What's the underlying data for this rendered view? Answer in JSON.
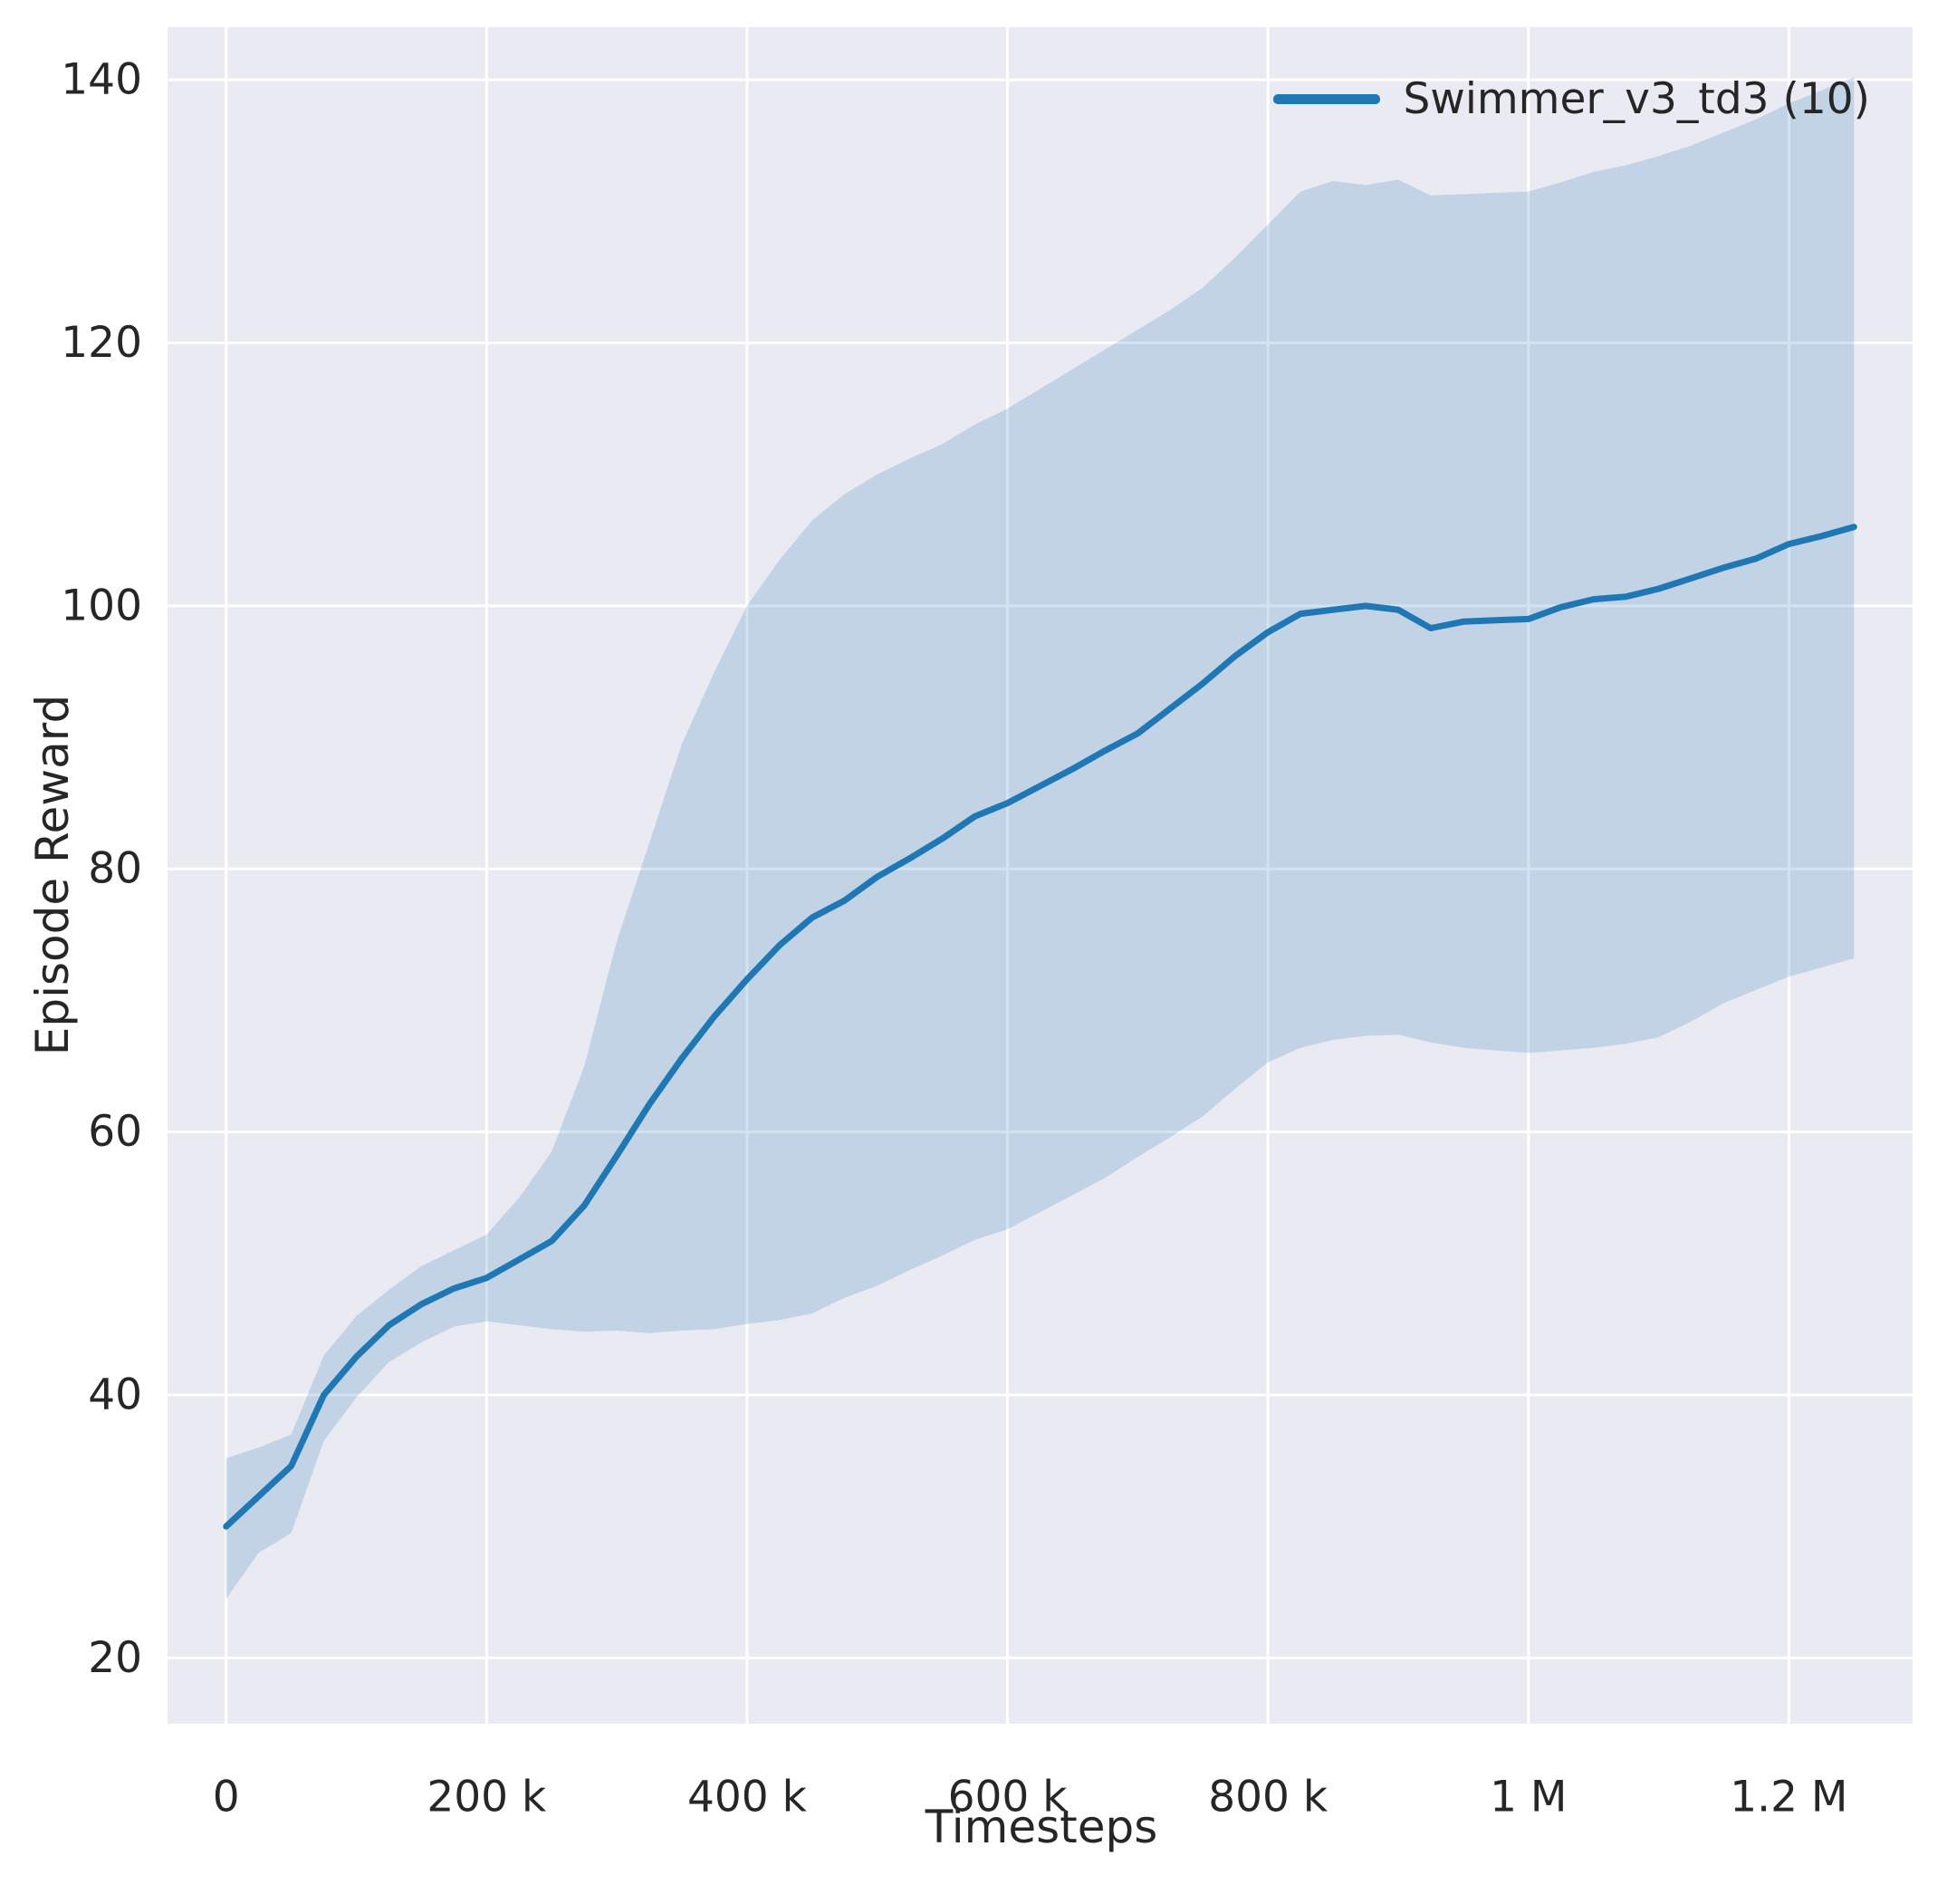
{
  "figure": {
    "background": "#ffffff",
    "plot_background": "#eaeaf2",
    "grid_color": "#ffffff",
    "tick_color": "#262626"
  },
  "chart_data": {
    "type": "line",
    "title": "",
    "xlabel": "Timesteps",
    "ylabel": "Episode Reward",
    "xlim": [
      -45000,
      1295000
    ],
    "ylim": [
      15,
      144
    ],
    "grid": true,
    "legend_position": "upper right",
    "xticks": {
      "values": [
        0,
        200000,
        400000,
        600000,
        800000,
        1000000,
        1200000
      ],
      "labels": [
        "0",
        "200 k",
        "400 k",
        "600 k",
        "800 k",
        "1 M",
        "1.2 M"
      ]
    },
    "yticks": {
      "values": [
        20,
        40,
        60,
        80,
        100,
        120,
        140
      ],
      "labels": [
        "20",
        "40",
        "60",
        "80",
        "100",
        "120",
        "140"
      ]
    },
    "series": [
      {
        "name": "Swimmer_v3_td3 (10)",
        "color": "#1f77b4",
        "band_color": "#1f77b4",
        "band_opacity": 0.2,
        "x": [
          0,
          25000,
          50000,
          75000,
          100000,
          125000,
          150000,
          175000,
          200000,
          225000,
          250000,
          275000,
          300000,
          325000,
          350000,
          375000,
          400000,
          425000,
          450000,
          475000,
          500000,
          525000,
          550000,
          575000,
          600000,
          625000,
          650000,
          675000,
          700000,
          725000,
          750000,
          775000,
          800000,
          825000,
          850000,
          875000,
          900000,
          925000,
          950000,
          975000,
          1000000,
          1025000,
          1050000,
          1075000,
          1100000,
          1125000,
          1150000,
          1175000,
          1200000,
          1225000,
          1250000
        ],
        "mean": [
          30.0,
          32.3,
          34.6,
          40.0,
          42.9,
          45.3,
          46.9,
          48.1,
          48.9,
          50.3,
          51.7,
          54.4,
          58.2,
          62.1,
          65.6,
          68.8,
          71.6,
          74.2,
          76.3,
          77.6,
          79.4,
          80.8,
          82.3,
          84.0,
          85.0,
          86.3,
          87.6,
          89.0,
          90.3,
          92.2,
          94.1,
          96.2,
          98.0,
          99.4,
          99.7,
          100.0,
          99.7,
          98.3,
          98.8,
          98.9,
          99.0,
          99.9,
          100.5,
          100.7,
          101.3,
          102.1,
          102.9,
          103.6,
          104.7,
          105.3,
          106.0
        ],
        "lower": [
          24.5,
          28.0,
          29.5,
          36.5,
          39.8,
          42.5,
          44.0,
          45.2,
          45.6,
          45.3,
          45.0,
          44.8,
          44.9,
          44.7,
          44.9,
          45.0,
          45.4,
          45.7,
          46.2,
          47.4,
          48.3,
          49.5,
          50.6,
          51.8,
          52.6,
          53.9,
          55.2,
          56.5,
          58.1,
          59.6,
          61.2,
          63.3,
          65.3,
          66.4,
          67.0,
          67.3,
          67.4,
          66.8,
          66.4,
          66.2,
          66.0,
          66.2,
          66.4,
          66.7,
          67.2,
          68.4,
          69.8,
          70.8,
          71.8,
          72.5,
          73.2
        ],
        "upper": [
          35.2,
          36.0,
          37.0,
          43.0,
          46.0,
          48.0,
          49.8,
          51.0,
          52.2,
          55.0,
          58.5,
          65.0,
          74.5,
          82.0,
          89.5,
          95.0,
          100.0,
          103.5,
          106.5,
          108.5,
          110.0,
          111.2,
          112.3,
          113.8,
          115.0,
          116.5,
          118.0,
          119.5,
          121.0,
          122.5,
          124.2,
          126.5,
          129.0,
          131.5,
          132.3,
          132.0,
          132.4,
          131.2,
          131.3,
          131.4,
          131.5,
          132.2,
          133.0,
          133.5,
          134.2,
          135.0,
          136.0,
          137.0,
          138.2,
          139.2,
          140.2
        ]
      }
    ]
  }
}
